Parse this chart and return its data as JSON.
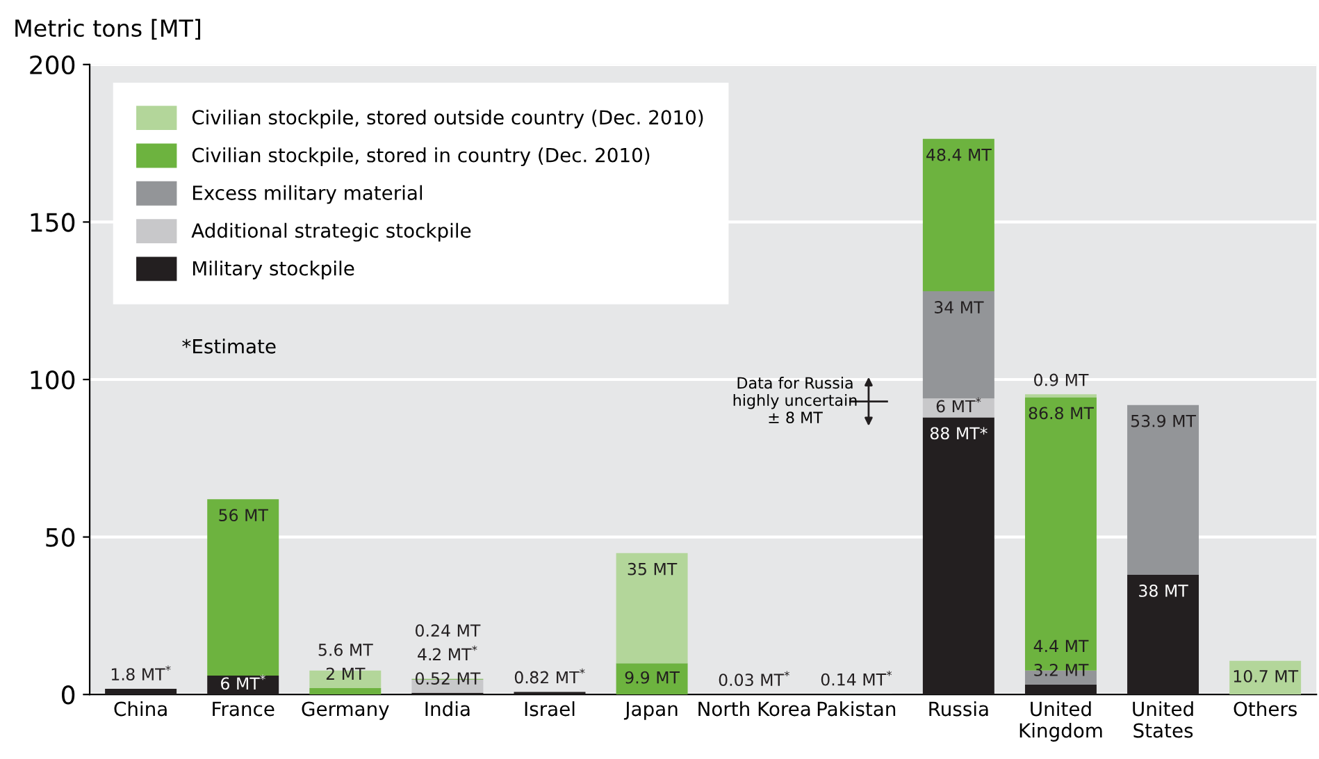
{
  "chart_data": {
    "type": "bar",
    "stacked": true,
    "ylabel": "Metric tons [MT]",
    "categories": [
      "China",
      "France",
      "Germany",
      "India",
      "Israel",
      "Japan",
      "North Korea",
      "Pakistan",
      "Russia",
      "United\nKingdom",
      "United\nStates",
      "Others"
    ],
    "series": [
      {
        "name": "Military stockpile",
        "color": "#231f20",
        "values": [
          1.8,
          6,
          null,
          0.52,
          0.82,
          null,
          0.03,
          0.14,
          88,
          3.2,
          38,
          null
        ],
        "value_labels": [
          "1.8 MT$^{*}$",
          "6 MT$^{*}$",
          null,
          "0.52 MT",
          "0.82 MT$^{*}$",
          null,
          "0.03 MT$^{*}$",
          "0.14 MT$^{*}$",
          "88 MT*",
          "3.2 MT",
          "38 MT",
          null
        ]
      },
      {
        "name": "Additional strategic stockpile",
        "color": "#c8c8ca",
        "values": [
          null,
          null,
          null,
          4.2,
          null,
          null,
          null,
          null,
          6,
          null,
          null,
          null
        ],
        "value_labels": [
          null,
          null,
          null,
          "4.2 MT$^{*}$",
          null,
          null,
          null,
          null,
          "6 MT$^{*}$",
          null,
          null,
          null
        ]
      },
      {
        "name": "Excess military material",
        "color": "#939598",
        "values": [
          null,
          null,
          null,
          null,
          null,
          null,
          null,
          null,
          34,
          4.4,
          53.9,
          null
        ],
        "value_labels": [
          null,
          null,
          null,
          null,
          null,
          null,
          null,
          null,
          "34 MT",
          "4.4 MT",
          "53.9 MT",
          null
        ]
      },
      {
        "name": "Civilian stockpile, stored in country (Dec. 2010)",
        "color": "#6db33f",
        "values": [
          null,
          56,
          2,
          0.24,
          null,
          9.9,
          null,
          null,
          48.4,
          86.8,
          null,
          null
        ],
        "value_labels": [
          null,
          "56 MT",
          "2 MT",
          "0.24 MT",
          null,
          "9.9 MT",
          null,
          null,
          "48.4 MT",
          "86.8 MT",
          null,
          null
        ]
      },
      {
        "name": "Civilian stockpile, stored outside country (Dec. 2010)",
        "color": "#b3d69a",
        "values": [
          null,
          null,
          5.6,
          null,
          null,
          35,
          null,
          null,
          null,
          0.9,
          null,
          10.7
        ],
        "value_labels": [
          null,
          null,
          "5.6 MT",
          null,
          null,
          "35 MT",
          null,
          null,
          null,
          "0.9 MT",
          null,
          "10.7 MT"
        ]
      }
    ],
    "ylim": [
      0,
      200
    ],
    "yticks": [
      0,
      50,
      100,
      150,
      200
    ],
    "grid": "y",
    "legend": "top left",
    "annotations": [
      "*Estimate",
      "Data for Russia\nhighly uncertain\n± 8 MT"
    ]
  }
}
